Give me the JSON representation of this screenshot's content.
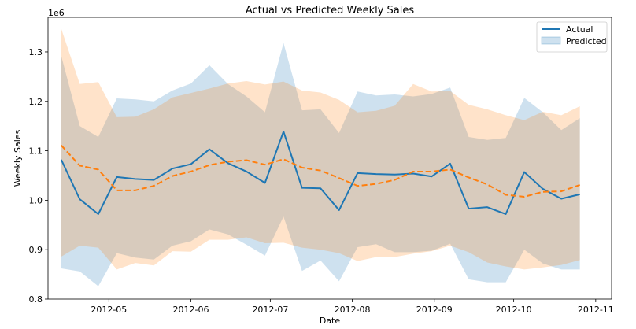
{
  "chart_data": {
    "type": "line",
    "title": "Actual vs Predicted Weekly Sales",
    "xlabel": "Date",
    "ylabel": "Weekly Sales",
    "y_offset_label": "1e6",
    "ylim": [
      0.8,
      1.37
    ],
    "xlim": [
      "2012-04-08",
      "2012-11-07"
    ],
    "grid": false,
    "legend_position": "top-right",
    "colors": {
      "actual": "#1f77b4",
      "predicted": "#ff7f0e",
      "actual_band": "#1f77b4",
      "predicted_band": "#ff7f0e"
    },
    "x_ticks": [
      {
        "date": "2012-05-01",
        "label": "2012-05"
      },
      {
        "date": "2012-06-01",
        "label": "2012-06"
      },
      {
        "date": "2012-07-01",
        "label": "2012-07"
      },
      {
        "date": "2012-08-01",
        "label": "2012-08"
      },
      {
        "date": "2012-09-01",
        "label": "2012-09"
      },
      {
        "date": "2012-10-01",
        "label": "2012-10"
      },
      {
        "date": "2012-11-01",
        "label": "2012-11"
      }
    ],
    "y_ticks": [
      {
        "value": 0.8,
        "label": "0.8"
      },
      {
        "value": 0.9,
        "label": "0.9"
      },
      {
        "value": 1.0,
        "label": "1.0"
      },
      {
        "value": 1.1,
        "label": "1.1"
      },
      {
        "value": 1.2,
        "label": "1.2"
      },
      {
        "value": 1.3,
        "label": "1.3"
      }
    ],
    "x": [
      "2012-04-13",
      "2012-04-20",
      "2012-04-27",
      "2012-05-04",
      "2012-05-11",
      "2012-05-18",
      "2012-05-25",
      "2012-06-01",
      "2012-06-08",
      "2012-06-15",
      "2012-06-22",
      "2012-06-29",
      "2012-07-06",
      "2012-07-13",
      "2012-07-20",
      "2012-07-27",
      "2012-08-03",
      "2012-08-10",
      "2012-08-17",
      "2012-08-24",
      "2012-08-31",
      "2012-09-07",
      "2012-09-14",
      "2012-09-21",
      "2012-09-28",
      "2012-10-05",
      "2012-10-12",
      "2012-10-19",
      "2012-10-26"
    ],
    "series": [
      {
        "name": "Actual",
        "values": [
          1.082,
          1.002,
          0.972,
          1.047,
          1.043,
          1.041,
          1.064,
          1.073,
          1.103,
          1.075,
          1.058,
          1.035,
          1.139,
          1.025,
          1.024,
          0.98,
          1.055,
          1.053,
          1.052,
          1.054,
          1.048,
          1.074,
          0.983,
          0.986,
          0.972,
          1.057,
          1.023,
          1.003,
          1.012
        ],
        "band_upper": [
          1.292,
          1.15,
          1.128,
          1.206,
          1.204,
          1.2,
          1.222,
          1.236,
          1.273,
          1.235,
          1.21,
          1.178,
          1.318,
          1.182,
          1.184,
          1.136,
          1.22,
          1.212,
          1.214,
          1.21,
          1.215,
          1.228,
          1.128,
          1.122,
          1.126,
          1.207,
          1.178,
          1.142,
          1.166
        ],
        "band_lower": [
          0.862,
          0.856,
          0.826,
          0.893,
          0.884,
          0.88,
          0.908,
          0.917,
          0.941,
          0.931,
          0.91,
          0.888,
          0.967,
          0.857,
          0.878,
          0.836,
          0.905,
          0.911,
          0.895,
          0.895,
          0.898,
          0.912,
          0.84,
          0.834,
          0.834,
          0.9,
          0.872,
          0.86,
          0.86
        ]
      },
      {
        "name": "Predicted",
        "values": [
          1.111,
          1.07,
          1.062,
          1.02,
          1.02,
          1.029,
          1.049,
          1.058,
          1.071,
          1.078,
          1.081,
          1.072,
          1.083,
          1.066,
          1.06,
          1.045,
          1.029,
          1.033,
          1.041,
          1.058,
          1.058,
          1.062,
          1.046,
          1.032,
          1.011,
          1.007,
          1.017,
          1.018,
          1.031
        ],
        "band_upper": [
          1.347,
          1.235,
          1.239,
          1.168,
          1.169,
          1.184,
          1.208,
          1.217,
          1.226,
          1.236,
          1.241,
          1.234,
          1.24,
          1.222,
          1.218,
          1.203,
          1.178,
          1.181,
          1.191,
          1.235,
          1.22,
          1.221,
          1.193,
          1.184,
          1.172,
          1.162,
          1.179,
          1.172,
          1.19
        ],
        "band_lower": [
          0.886,
          0.908,
          0.904,
          0.86,
          0.873,
          0.868,
          0.897,
          0.896,
          0.92,
          0.92,
          0.925,
          0.913,
          0.914,
          0.904,
          0.9,
          0.893,
          0.877,
          0.885,
          0.885,
          0.892,
          0.897,
          0.908,
          0.895,
          0.874,
          0.866,
          0.86,
          0.864,
          0.869,
          0.879
        ]
      }
    ]
  }
}
